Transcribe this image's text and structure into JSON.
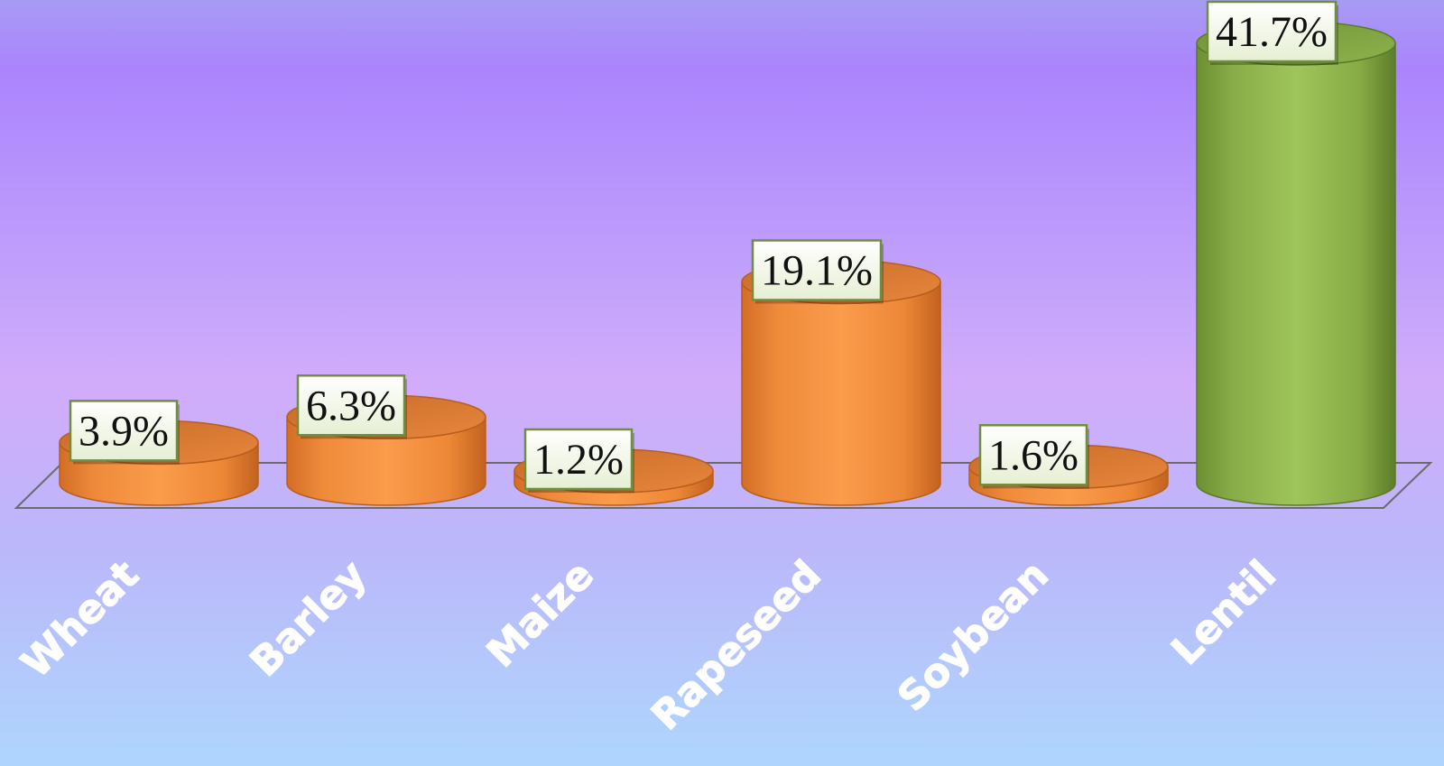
{
  "chart_data": {
    "type": "bar",
    "style": "3d-cylinder",
    "categories": [
      "Wheat",
      "Barley",
      "Maize",
      "Rapeseed",
      "Soybean",
      "Lentil"
    ],
    "values": [
      3.9,
      6.3,
      1.2,
      19.1,
      1.6,
      41.7
    ],
    "data_labels": [
      "3.9%",
      "6.3%",
      "1.2%",
      "19.1%",
      "1.6%",
      "41.7%"
    ],
    "unit": "%",
    "title": "",
    "xlabel": "",
    "ylabel": "",
    "ylim": [
      0,
      41.7
    ],
    "grid": false,
    "legend": "none",
    "colors": {
      "default_bar": "#f0913f",
      "highlight_bar": "#8cb24a",
      "label_box": "#f2f7e6",
      "label_border": "#6f8f3c",
      "floor_line": "#6b6b6b",
      "tick_text": "#ffffff"
    },
    "highlight_index": 5
  }
}
